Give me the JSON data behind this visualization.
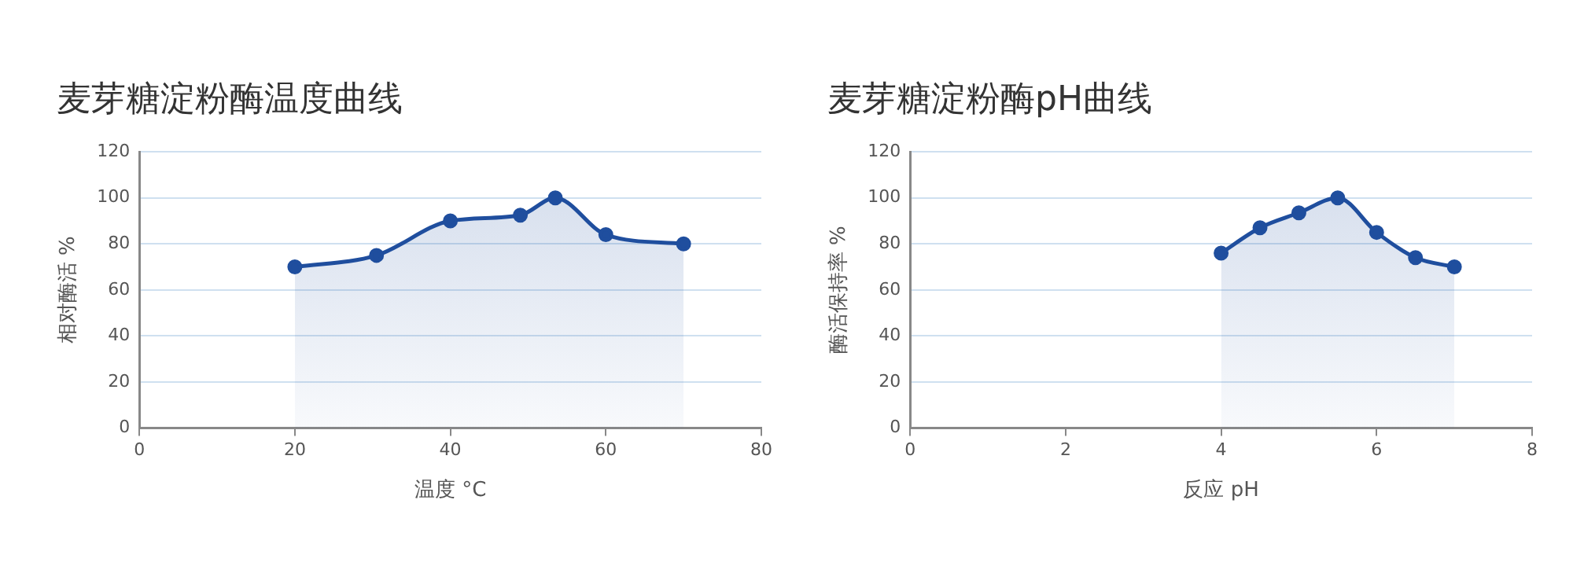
{
  "chart_data": [
    {
      "type": "area",
      "title": "麦芽糖淀粉酶温度曲线",
      "xlabel": "温度 °C",
      "ylabel": "相对酶活 %",
      "x": [
        20,
        30.5,
        40,
        49,
        53.5,
        60,
        70
      ],
      "values": [
        70,
        75,
        90,
        92.5,
        100,
        84,
        80
      ],
      "color": "#1f4e9e",
      "xlim": [
        0,
        80
      ],
      "xticks": [
        0,
        20,
        40,
        60,
        80
      ],
      "ylim": [
        0,
        120
      ],
      "yticks": [
        0,
        20,
        40,
        60,
        80,
        100,
        120
      ],
      "grid": "y",
      "legend": false,
      "marker": "circle"
    },
    {
      "type": "area",
      "title": "麦芽糖淀粉酶pH曲线",
      "xlabel": "反应 pH",
      "ylabel": "酶活保持率 %",
      "x": [
        4,
        4.5,
        5,
        5.5,
        6,
        6.5,
        7
      ],
      "values": [
        76,
        87,
        93.5,
        100,
        85,
        74,
        70
      ],
      "color": "#1f4e9e",
      "xlim": [
        0,
        8
      ],
      "xticks": [
        0,
        2,
        4,
        6,
        8
      ],
      "ylim": [
        0,
        120
      ],
      "yticks": [
        0,
        20,
        40,
        60,
        80,
        100,
        120
      ],
      "grid": "y",
      "legend": false,
      "marker": "circle"
    }
  ]
}
